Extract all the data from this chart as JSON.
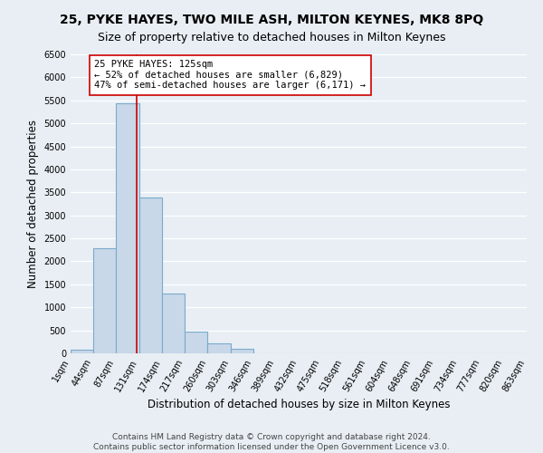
{
  "title": "25, PYKE HAYES, TWO MILE ASH, MILTON KEYNES, MK8 8PQ",
  "subtitle": "Size of property relative to detached houses in Milton Keynes",
  "xlabel": "Distribution of detached houses by size in Milton Keynes",
  "ylabel": "Number of detached properties",
  "footer_line1": "Contains HM Land Registry data © Crown copyright and database right 2024.",
  "footer_line2": "Contains public sector information licensed under the Open Government Licence v3.0.",
  "bin_edges": [
    1,
    44,
    87,
    131,
    174,
    217,
    260,
    303,
    346,
    389,
    432,
    475,
    518,
    561,
    604,
    648,
    691,
    734,
    777,
    820,
    863
  ],
  "bin_labels": [
    "1sqm",
    "44sqm",
    "87sqm",
    "131sqm",
    "174sqm",
    "217sqm",
    "260sqm",
    "303sqm",
    "346sqm",
    "389sqm",
    "432sqm",
    "475sqm",
    "518sqm",
    "561sqm",
    "604sqm",
    "648sqm",
    "691sqm",
    "734sqm",
    "777sqm",
    "820sqm",
    "863sqm"
  ],
  "bar_values": [
    70,
    2280,
    5440,
    3380,
    1300,
    470,
    220,
    90,
    0,
    0,
    0,
    0,
    0,
    0,
    0,
    0,
    0,
    0,
    0,
    0
  ],
  "bar_color": "#c8d8e8",
  "bar_edge_color": "#7aaacc",
  "vline_color": "#cc0000",
  "vline_x": 125,
  "annotation_text": "25 PYKE HAYES: 125sqm\n← 52% of detached houses are smaller (6,829)\n47% of semi-detached houses are larger (6,171) →",
  "annotation_box_color": "#ffffff",
  "annotation_box_edge_color": "#cc0000",
  "ylim": [
    0,
    6500
  ],
  "yticks": [
    0,
    500,
    1000,
    1500,
    2000,
    2500,
    3000,
    3500,
    4000,
    4500,
    5000,
    5500,
    6000,
    6500
  ],
  "bg_color": "#e8eef4",
  "grid_color": "#ffffff",
  "title_fontsize": 10,
  "subtitle_fontsize": 9,
  "axis_label_fontsize": 8.5,
  "tick_fontsize": 7,
  "annotation_fontsize": 7.5,
  "footer_fontsize": 6.5
}
